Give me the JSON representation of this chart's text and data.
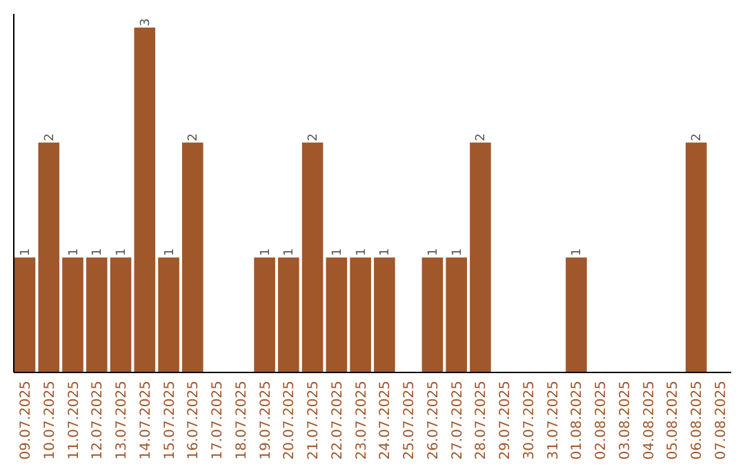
{
  "chart_data": {
    "type": "bar",
    "categories": [
      "09.07.2025",
      "10.07.2025",
      "11.07.2025",
      "12.07.2025",
      "13.07.2025",
      "14.07.2025",
      "15.07.2025",
      "16.07.2025",
      "17.07.2025",
      "18.07.2025",
      "19.07.2025",
      "20.07.2025",
      "21.07.2025",
      "22.07.2025",
      "23.07.2025",
      "24.07.2025",
      "25.07.2025",
      "26.07.2025",
      "27.07.2025",
      "28.07.2025",
      "29.07.2025",
      "30.07.2025",
      "31.07.2025",
      "01.08.2025",
      "02.08.2025",
      "03.08.2025",
      "04.08.2025",
      "05.08.2025",
      "06.08.2025",
      "07.08.2025"
    ],
    "values": [
      1,
      2,
      1,
      1,
      1,
      3,
      1,
      2,
      0,
      0,
      1,
      1,
      2,
      1,
      1,
      1,
      0,
      1,
      1,
      2,
      0,
      0,
      0,
      1,
      0,
      0,
      0,
      0,
      2,
      0
    ],
    "value_labels": [
      "1",
      "2",
      "1",
      "1",
      "1",
      "3",
      "1",
      "2",
      null,
      null,
      "1",
      "1",
      "2",
      "1",
      "1",
      "1",
      null,
      "1",
      "1",
      "2",
      null,
      null,
      null,
      "1",
      null,
      null,
      null,
      null,
      "2",
      null
    ],
    "color": "#a0572a"
  }
}
